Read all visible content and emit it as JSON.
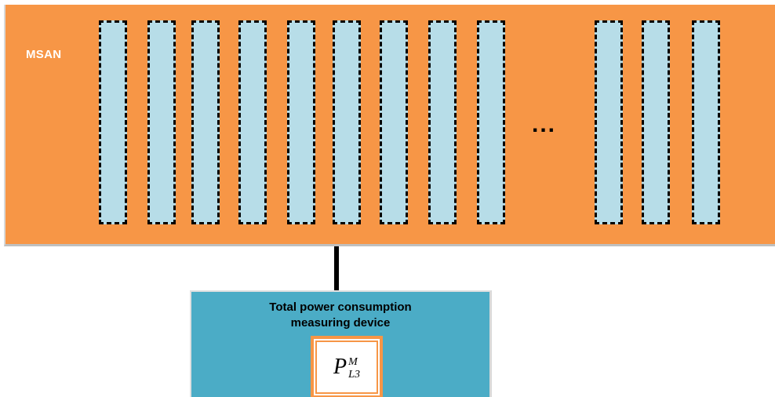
{
  "msan": {
    "label": "MSAN",
    "ellipsis": "...",
    "card_count_left_group": 9,
    "card_count_right_group": 3
  },
  "device": {
    "title_line1": "Total power consumption",
    "title_line2": "measuring device",
    "symbol_base": "P",
    "symbol_superscript": "M",
    "symbol_subscript": "L3"
  },
  "colors": {
    "chassis": "#f79646",
    "card_fill": "#b7dde8",
    "device_fill": "#4bacc6"
  }
}
